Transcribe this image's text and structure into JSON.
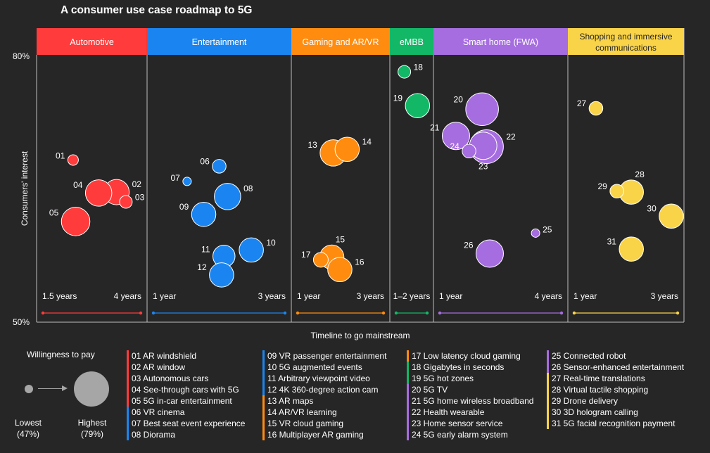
{
  "title": "A consumer use case roadmap to 5G",
  "chart_data": {
    "type": "scatter",
    "title": "A consumer use case roadmap to 5G",
    "xlabel": "Timeline to go mainstream",
    "ylabel": "Consumers' interest",
    "ylim": [
      50,
      80
    ],
    "y_axis_labels": {
      "top": "80%",
      "bottom": "50%"
    },
    "size_legend": {
      "title": "Willingness to pay",
      "low": "Lowest",
      "low_value": "(47%)",
      "high": "Highest",
      "high_value": "(79%)"
    },
    "categories": [
      {
        "name": "Automotive",
        "color": "#ff3b3b",
        "timeline_start": "1.5 years",
        "timeline_end": "4 years"
      },
      {
        "name": "Entertainment",
        "color": "#1a85f0",
        "timeline_start": "1 year",
        "timeline_end": "3 years"
      },
      {
        "name": "Gaming and AR/VR",
        "color": "#ff8c0f",
        "timeline_start": "1 year",
        "timeline_end": "3 years"
      },
      {
        "name": "eMBB",
        "color": "#12b866",
        "timeline_start": "1–2 years",
        "timeline_end": ""
      },
      {
        "name": "Smart home (FWA)",
        "color": "#a66de0",
        "timeline_start": "1 year",
        "timeline_end": "4 years"
      },
      {
        "name": "Shopping and immersive communications",
        "color": "#fad448",
        "timeline_start": "1 year",
        "timeline_end": "3 years"
      }
    ],
    "points": [
      {
        "id": "01",
        "category": 0,
        "t": 0.28,
        "interest": 68.2,
        "wtp": 49
      },
      {
        "id": "02",
        "category": 0,
        "t": 0.79,
        "interest": 64.6,
        "wtp": 63
      },
      {
        "id": "03",
        "category": 0,
        "t": 0.9,
        "interest": 63.5,
        "wtp": 51
      },
      {
        "id": "04",
        "category": 0,
        "t": 0.58,
        "interest": 64.5,
        "wtp": 64
      },
      {
        "id": "05",
        "category": 0,
        "t": 0.31,
        "interest": 61.3,
        "wtp": 66
      },
      {
        "id": "06",
        "category": 1,
        "t": 0.5,
        "interest": 67.5,
        "wtp": 52
      },
      {
        "id": "07",
        "category": 1,
        "t": 0.23,
        "interest": 65.8,
        "wtp": 47
      },
      {
        "id": "08",
        "category": 1,
        "t": 0.57,
        "interest": 64.1,
        "wtp": 64
      },
      {
        "id": "09",
        "category": 1,
        "t": 0.37,
        "interest": 62.1,
        "wtp": 62
      },
      {
        "id": "10",
        "category": 1,
        "t": 0.77,
        "interest": 58.1,
        "wtp": 62
      },
      {
        "id": "11",
        "category": 1,
        "t": 0.54,
        "interest": 57.4,
        "wtp": 60
      },
      {
        "id": "12",
        "category": 1,
        "t": 0.52,
        "interest": 55.3,
        "wtp": 62
      },
      {
        "id": "13",
        "category": 2,
        "t": 0.4,
        "interest": 69.0,
        "wtp": 64
      },
      {
        "id": "14",
        "category": 2,
        "t": 0.59,
        "interest": 69.4,
        "wtp": 62
      },
      {
        "id": "15",
        "category": 2,
        "t": 0.38,
        "interest": 57.3,
        "wtp": 62
      },
      {
        "id": "16",
        "category": 2,
        "t": 0.49,
        "interest": 55.9,
        "wtp": 62
      },
      {
        "id": "17",
        "category": 2,
        "t": 0.23,
        "interest": 57.0,
        "wtp": 53
      },
      {
        "id": "18",
        "category": 3,
        "t": 0.1,
        "interest": 78.1,
        "wtp": 51
      },
      {
        "id": "19",
        "category": 3,
        "t": 0.82,
        "interest": 74.3,
        "wtp": 62
      },
      {
        "id": "20",
        "category": 4,
        "t": 0.33,
        "interest": 73.9,
        "wtp": 70
      },
      {
        "id": "21",
        "category": 4,
        "t": 0.09,
        "interest": 70.9,
        "wtp": 65
      },
      {
        "id": "22",
        "category": 4,
        "t": 0.37,
        "interest": 69.7,
        "wtp": 71
      },
      {
        "id": "23",
        "category": 4,
        "t": 0.34,
        "interest": 69.8,
        "wtp": 65
      },
      {
        "id": "24",
        "category": 4,
        "t": 0.21,
        "interest": 69.2,
        "wtp": 52
      },
      {
        "id": "25",
        "category": 4,
        "t": 0.82,
        "interest": 60.0,
        "wtp": 47
      },
      {
        "id": "26",
        "category": 4,
        "t": 0.4,
        "interest": 57.7,
        "wtp": 65
      },
      {
        "id": "27",
        "category": 5,
        "t": 0.17,
        "interest": 74.0,
        "wtp": 52
      },
      {
        "id": "28",
        "category": 5,
        "t": 0.56,
        "interest": 64.6,
        "wtp": 62
      },
      {
        "id": "29",
        "category": 5,
        "t": 0.4,
        "interest": 64.7,
        "wtp": 52
      },
      {
        "id": "30",
        "category": 5,
        "t": 1.0,
        "interest": 61.9,
        "wtp": 62
      },
      {
        "id": "31",
        "category": 5,
        "t": 0.56,
        "interest": 58.2,
        "wtp": 62
      }
    ]
  },
  "legend_items": [
    {
      "label": "01 AR windshield",
      "category": 0
    },
    {
      "label": "02 AR window",
      "category": 0
    },
    {
      "label": "03 Autonomous cars",
      "category": 0
    },
    {
      "label": "04 See-through cars with 5G",
      "category": 0
    },
    {
      "label": "05 5G in-car entertainment",
      "category": 0
    },
    {
      "label": "06 VR cinema",
      "category": 1
    },
    {
      "label": "07 Best seat event experience",
      "category": 1
    },
    {
      "label": "08 Diorama",
      "category": 1
    },
    {
      "label": "09 VR passenger entertainment",
      "category": 1
    },
    {
      "label": "10 5G augmented events",
      "category": 1
    },
    {
      "label": "11 Arbitrary viewpoint video",
      "category": 1
    },
    {
      "label": "12 4K 360-degree action cam",
      "category": 1
    },
    {
      "label": "13 AR maps",
      "category": 2
    },
    {
      "label": "14 AR/VR learning",
      "category": 2
    },
    {
      "label": "15 VR cloud gaming",
      "category": 2
    },
    {
      "label": "16 Multiplayer AR gaming",
      "category": 2
    },
    {
      "label": "17 Low latency cloud gaming",
      "category": 2
    },
    {
      "label": "18 Gigabytes in seconds",
      "category": 3
    },
    {
      "label": "19 5G hot zones",
      "category": 3
    },
    {
      "label": "20 5G TV",
      "category": 4
    },
    {
      "label": "21 5G home wireless broadband",
      "category": 4
    },
    {
      "label": "22 Health wearable",
      "category": 4
    },
    {
      "label": "23 Home sensor service",
      "category": 4
    },
    {
      "label": "24 5G early alarm system",
      "category": 4
    },
    {
      "label": "25 Connected robot",
      "category": 4
    },
    {
      "label": "26 Sensor-enhanced entertainment",
      "category": 4
    },
    {
      "label": "27 Real-time translations",
      "category": 5
    },
    {
      "label": "28 Virtual tactile shopping",
      "category": 5
    },
    {
      "label": "29 Drone delivery",
      "category": 5
    },
    {
      "label": "30 3D hologram calling",
      "category": 5
    },
    {
      "label": "31 5G facial recognition payment",
      "category": 5
    }
  ]
}
